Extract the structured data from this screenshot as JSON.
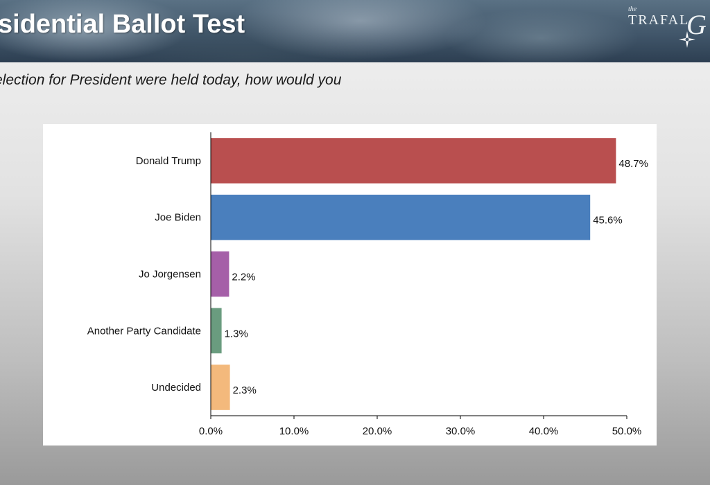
{
  "header": {
    "title": "sidential Ballot Test",
    "logo": {
      "small": "the",
      "word": "TRAFAL",
      "mark": "G"
    }
  },
  "question": "election for President were held today, how would you",
  "chart_data": {
    "type": "bar",
    "orientation": "horizontal",
    "categories": [
      "Donald Trump",
      "Joe Biden",
      "Jo Jorgensen",
      "Another Party Candidate",
      "Undecided"
    ],
    "values": [
      48.7,
      45.6,
      2.2,
      1.3,
      2.3
    ],
    "value_labels": [
      "48.7%",
      "45.6%",
      "2.2%",
      "1.3%",
      "2.3%"
    ],
    "colors": [
      "#b94f4f",
      "#4a7fbd",
      "#a55fa8",
      "#6a9c7f",
      "#f3b97c"
    ],
    "xlim": [
      0,
      50
    ],
    "xticks": [
      0,
      10,
      20,
      30,
      40,
      50
    ],
    "xtick_labels": [
      "0.0%",
      "10.0%",
      "20.0%",
      "30.0%",
      "40.0%",
      "50.0%"
    ],
    "grid": false,
    "legend": false
  }
}
